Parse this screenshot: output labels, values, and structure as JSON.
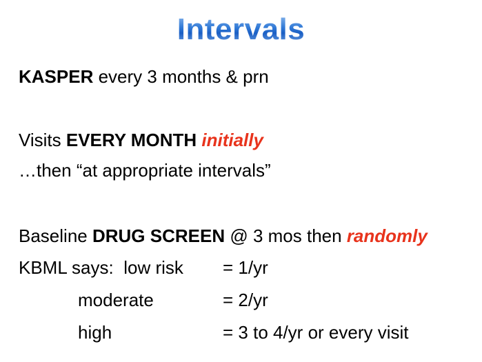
{
  "title": "Intervals",
  "kasper": {
    "bold": "KASPER",
    "rest": " every 3 months & prn"
  },
  "visits": {
    "pre": "Visits ",
    "bold": "EVERY MONTH",
    "space": " ",
    "emph": "initially"
  },
  "then": "…then “at appropriate intervals”",
  "drug": {
    "pre": "Baseline ",
    "bold": "DRUG SCREEN",
    "mid": " @ 3 mos then ",
    "emph": "randomly"
  },
  "kbml": {
    "label": "KBML says:",
    "rows": [
      {
        "risk": "low risk",
        "value": "=  1/yr"
      },
      {
        "risk": "moderate",
        "value": "=  2/yr"
      },
      {
        "risk": "high",
        "value": "=  3 to 4/yr or every visit"
      }
    ]
  }
}
